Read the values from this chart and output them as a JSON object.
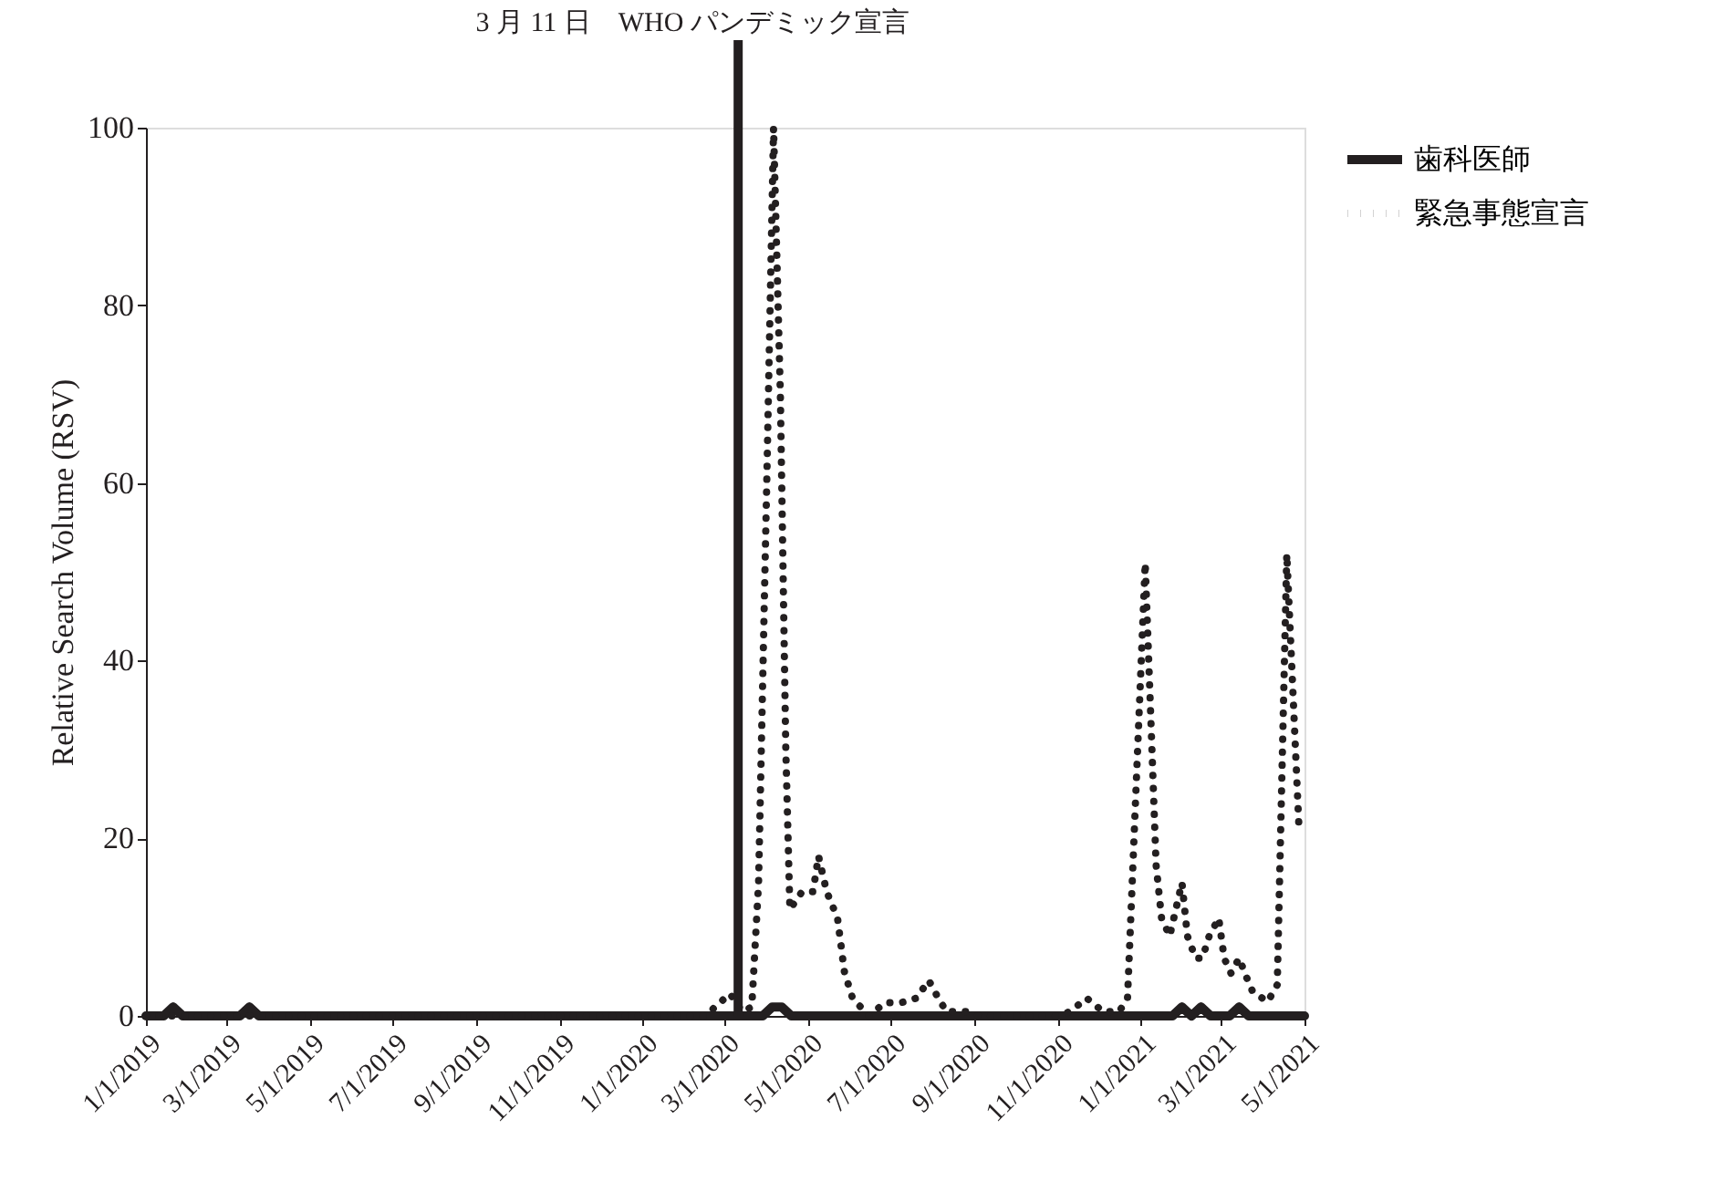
{
  "chart_data": {
    "type": "line",
    "ylabel": "Relative Search Volume (RSV)",
    "xlim": [
      "2019-01-01",
      "2021-05-01"
    ],
    "xticks": [
      {
        "value": "2019-01-01",
        "label": "1/1/2019"
      },
      {
        "value": "2019-03-01",
        "label": "3/1/2019"
      },
      {
        "value": "2019-05-01",
        "label": "5/1/2019"
      },
      {
        "value": "2019-07-01",
        "label": "7/1/2019"
      },
      {
        "value": "2019-09-01",
        "label": "9/1/2019"
      },
      {
        "value": "2019-11-01",
        "label": "11/1/2019"
      },
      {
        "value": "2020-01-01",
        "label": "1/1/2020"
      },
      {
        "value": "2020-03-01",
        "label": "3/1/2020"
      },
      {
        "value": "2020-05-01",
        "label": "5/1/2020"
      },
      {
        "value": "2020-07-01",
        "label": "7/1/2020"
      },
      {
        "value": "2020-09-01",
        "label": "9/1/2020"
      },
      {
        "value": "2020-11-01",
        "label": "11/1/2020"
      },
      {
        "value": "2021-01-01",
        "label": "1/1/2021"
      },
      {
        "value": "2021-03-01",
        "label": "3/1/2021"
      },
      {
        "value": "2021-05-01",
        "label": "5/1/2021"
      }
    ],
    "ylim": [
      0,
      100
    ],
    "yticks": [
      0,
      20,
      40,
      60,
      80,
      100
    ],
    "grid": false,
    "legend": "right",
    "series": [
      {
        "name": "歯科医師",
        "color": "#231f20",
        "line_style": "solid",
        "x": [
          "2019-01-01",
          "2019-01-14",
          "2019-01-21",
          "2019-01-28",
          "2019-03-11",
          "2019-03-18",
          "2019-03-25",
          "2020-03-29",
          "2020-04-05",
          "2020-04-12",
          "2020-04-19",
          "2021-01-24",
          "2021-01-31",
          "2021-02-07",
          "2021-02-14",
          "2021-02-21",
          "2021-03-07",
          "2021-03-14",
          "2021-03-21",
          "2021-05-01"
        ],
        "values": [
          0,
          0,
          1,
          0,
          0,
          1,
          0,
          0,
          1,
          1,
          0,
          0,
          1,
          0,
          1,
          0,
          0,
          1,
          0,
          0
        ]
      },
      {
        "name": "緊急事態宣言",
        "color": "#231f20",
        "line_style": "dotted",
        "x": [
          "2019-01-01",
          "2020-02-16",
          "2020-02-23",
          "2020-03-05",
          "2020-03-14",
          "2020-03-21",
          "2020-03-26",
          "2020-04-01",
          "2020-04-06",
          "2020-04-11",
          "2020-04-15",
          "2020-04-18",
          "2020-04-27",
          "2020-05-05",
          "2020-05-09",
          "2020-05-15",
          "2020-05-23",
          "2020-05-28",
          "2020-06-03",
          "2020-06-15",
          "2020-06-27",
          "2020-07-09",
          "2020-07-20",
          "2020-07-29",
          "2020-08-05",
          "2020-08-11",
          "2020-08-26",
          "2020-09-05",
          "2020-11-01",
          "2020-11-10",
          "2020-11-22",
          "2020-12-04",
          "2020-12-16",
          "2020-12-22",
          "2021-01-04",
          "2021-01-12",
          "2021-01-16",
          "2021-01-22",
          "2021-01-31",
          "2021-02-04",
          "2021-02-10",
          "2021-02-15",
          "2021-02-20",
          "2021-02-27",
          "2021-03-03",
          "2021-03-08",
          "2021-03-14",
          "2021-03-19",
          "2021-03-24",
          "2021-04-04",
          "2021-04-11",
          "2021-04-18",
          "2021-04-27"
        ],
        "values": [
          0,
          0,
          1,
          2.5,
          0.5,
          1,
          15,
          60,
          100,
          70,
          30,
          12,
          14,
          14,
          18,
          14,
          11,
          5,
          2,
          0,
          1.5,
          1.5,
          2,
          4,
          2,
          0.5,
          0.5,
          0,
          0,
          0.5,
          2,
          0.5,
          0.5,
          2,
          51,
          17,
          11,
          9,
          15,
          9,
          6.5,
          6.5,
          9,
          11,
          6.5,
          4.8,
          6.5,
          4.5,
          2.7,
          1.6,
          3.5,
          52,
          21
        ]
      }
    ],
    "ref_lines": [
      {
        "axis": "x",
        "value": "2020-03-11",
        "label": "3 月 11 日　WHO パンデミック宣言",
        "color": "#231f20"
      }
    ]
  }
}
